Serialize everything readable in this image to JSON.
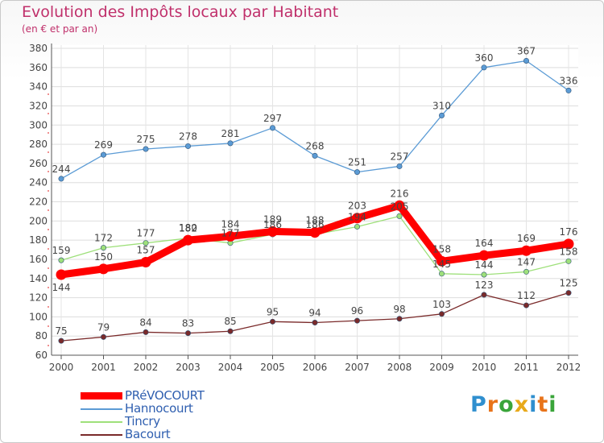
{
  "header": {
    "title": "Evolution des Impôts locaux par Habitant",
    "subtitle": "(en € et par an)"
  },
  "logo": {
    "letters": [
      {
        "ch": "P",
        "color": "#2f8fcf"
      },
      {
        "ch": "r",
        "color": "#e8731a"
      },
      {
        "ch": "o",
        "color": "#3aa53a"
      },
      {
        "ch": "x",
        "color": "#e8a91a"
      },
      {
        "ch": "i",
        "color": "#2f8fcf"
      },
      {
        "ch": "t",
        "color": "#e8731a"
      },
      {
        "ch": "i",
        "color": "#3aa53a"
      }
    ]
  },
  "chart_data": {
    "type": "line",
    "title": "Evolution des Impôts locaux par Habitant",
    "subtitle": "(en € et par an)",
    "x": [
      "2000",
      "2001",
      "2002",
      "2003",
      "2004",
      "2005",
      "2006",
      "2007",
      "2008",
      "2009",
      "2010",
      "2011",
      "2012"
    ],
    "ylim": [
      60,
      380
    ],
    "yticks": [
      60,
      80,
      100,
      120,
      140,
      160,
      180,
      200,
      220,
      240,
      260,
      280,
      300,
      320,
      340,
      360,
      380
    ],
    "grid": true,
    "legend_position": "bottom-left",
    "series": [
      {
        "name": "PRéVOCOURT",
        "color": "#ff0000",
        "values": [
          144,
          150,
          157,
          180,
          184,
          189,
          188,
          203,
          216,
          158,
          164,
          169,
          176
        ],
        "label_pos": [
          "below",
          "above",
          "above",
          "above",
          "above",
          "above",
          "above",
          "above",
          "above",
          "above",
          "above",
          "above",
          "above"
        ]
      },
      {
        "name": "Hannocourt",
        "color": "#5b9bd5",
        "values": [
          244,
          269,
          275,
          278,
          281,
          297,
          268,
          251,
          257,
          310,
          360,
          367,
          336
        ],
        "label_pos": [
          "above",
          "above",
          "above",
          "above",
          "above",
          "above",
          "above",
          "above",
          "above",
          "above",
          "above",
          "above",
          "above"
        ]
      },
      {
        "name": "Tincry",
        "color": "#9ee07a",
        "values": [
          159,
          172,
          177,
          182,
          177,
          186,
          186,
          194,
          205,
          145,
          144,
          147,
          158
        ],
        "label_pos": [
          "above",
          "above",
          "above",
          "above",
          "above",
          "above",
          "above",
          "above",
          "above",
          "above",
          "above",
          "above",
          "above"
        ]
      },
      {
        "name": "Bacourt",
        "color": "#7a2a2a",
        "values": [
          75,
          79,
          84,
          83,
          85,
          95,
          94,
          96,
          98,
          103,
          123,
          112,
          125
        ],
        "label_pos": [
          "above",
          "above",
          "above",
          "above",
          "above",
          "above",
          "above",
          "above",
          "above",
          "above",
          "above",
          "above",
          "above"
        ]
      }
    ]
  }
}
